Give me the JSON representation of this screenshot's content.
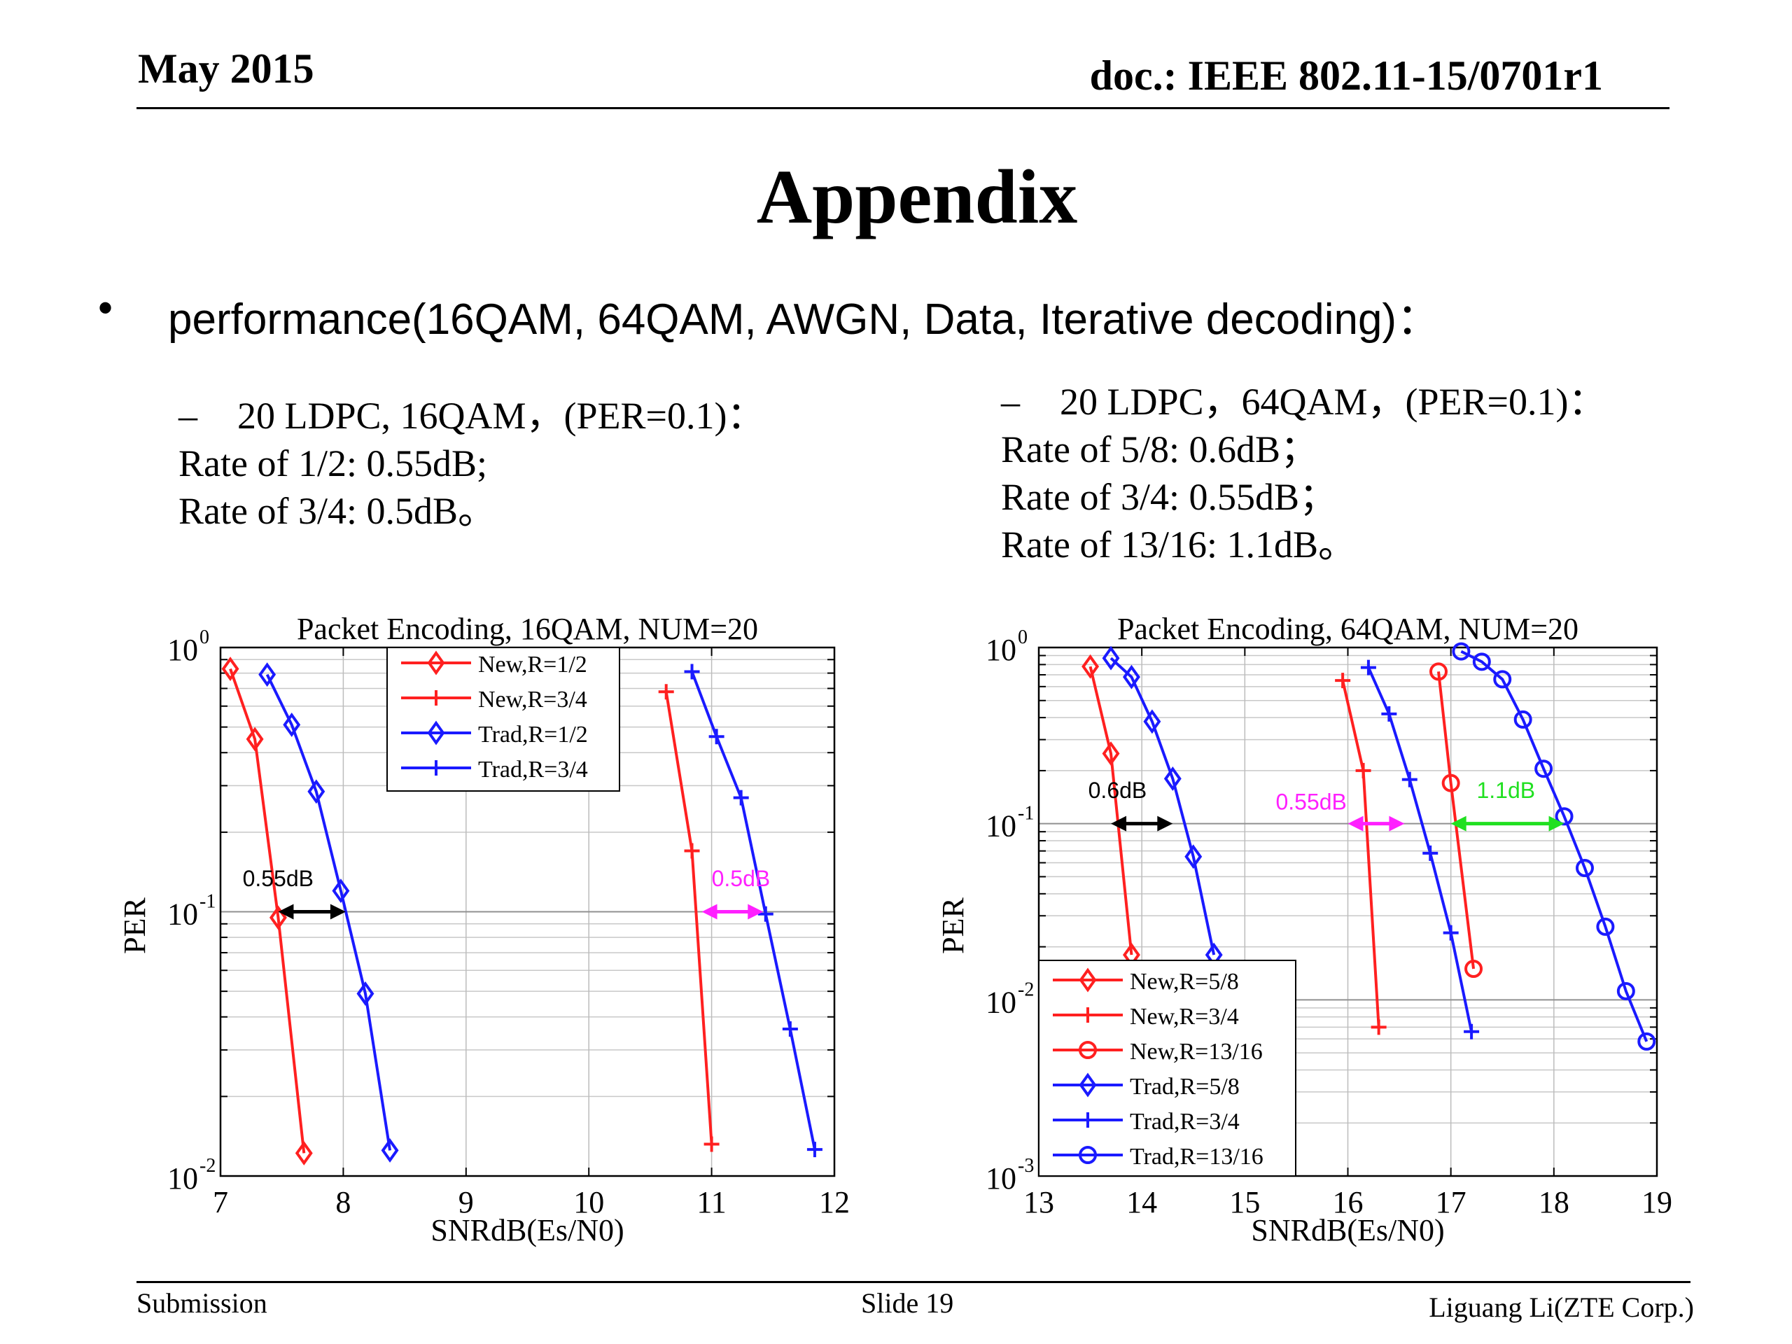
{
  "header": {
    "date": "May 2015",
    "doc_id": "doc.: IEEE 802.11-15/0701r1"
  },
  "title": "Appendix",
  "bullet": "performance(16QAM, 64QAM, AWGN, Data, Iterative decoding)：",
  "left_text": {
    "heading": "20 LDPC, 16QAM，(PER=0.1)：",
    "lines": [
      "Rate of 1/2: 0.55dB;",
      "Rate of 3/4: 0.5dB。"
    ]
  },
  "right_text": {
    "heading": "20 LDPC，64QAM，(PER=0.1)：",
    "lines": [
      "Rate of 5/8: 0.6dB；",
      "Rate of 3/4: 0.55dB；",
      "Rate of 13/16: 1.1dB。"
    ]
  },
  "footer": {
    "left": "Submission",
    "center": "Slide 19",
    "right": "Liguang Li(ZTE Corp.)"
  },
  "chart_data": [
    {
      "type": "line",
      "title": "Packet Encoding, 16QAM, NUM=20",
      "xlabel": "SNRdB(Es/N0)",
      "ylabel": "PER",
      "xlim": [
        7,
        12
      ],
      "ylim": [
        0.01,
        1
      ],
      "yscale": "log",
      "grid": true,
      "legend_position": "top-center",
      "xticks": [
        "7",
        "8",
        "9",
        "10",
        "11",
        "12"
      ],
      "yticks": [
        {
          "base": "10",
          "exp": "0",
          "value": 1
        },
        {
          "base": "10",
          "exp": "-1",
          "value": 0.1
        },
        {
          "base": "10",
          "exp": "-2",
          "value": 0.01
        }
      ],
      "series": [
        {
          "name": "New,R=1/2",
          "color": "#ff2020",
          "marker": "diamond",
          "x": [
            7.08,
            7.28,
            7.47,
            7.68
          ],
          "y": [
            0.83,
            0.45,
            0.095,
            0.0122
          ]
        },
        {
          "name": "New,R=3/4",
          "color": "#ff2020",
          "marker": "plus",
          "x": [
            10.63,
            10.84,
            11.0
          ],
          "y": [
            0.68,
            0.17,
            0.0132
          ]
        },
        {
          "name": "Trad,R=1/2",
          "color": "#1a1aff",
          "marker": "diamond",
          "x": [
            7.38,
            7.58,
            7.78,
            7.98,
            8.18,
            8.38
          ],
          "y": [
            0.79,
            0.51,
            0.285,
            0.12,
            0.049,
            0.0125
          ]
        },
        {
          "name": "Trad,R=3/4",
          "color": "#1a1aff",
          "marker": "plus",
          "x": [
            10.84,
            11.04,
            11.24,
            11.44,
            11.64,
            11.84
          ],
          "y": [
            0.81,
            0.46,
            0.27,
            0.098,
            0.036,
            0.0126
          ]
        }
      ],
      "annotations": [
        {
          "text": "0.55dB",
          "color": "#000000",
          "x1": 7.47,
          "x2": 8.02,
          "y": 0.1,
          "text_x": 7.18,
          "text_y": 0.125
        },
        {
          "text": "0.5dB",
          "color": "#ff20ff",
          "x1": 10.92,
          "x2": 11.42,
          "y": 0.1,
          "text_x": 11.0,
          "text_y": 0.125
        }
      ]
    },
    {
      "type": "line",
      "title": "Packet Encoding, 64QAM, NUM=20",
      "xlabel": "SNRdB(Es/N0)",
      "ylabel": "PER",
      "xlim": [
        13,
        19
      ],
      "ylim": [
        0.001,
        1
      ],
      "yscale": "log",
      "grid": true,
      "legend_position": "bottom-left",
      "xticks": [
        "13",
        "14",
        "15",
        "16",
        "17",
        "18",
        "19"
      ],
      "yticks": [
        {
          "base": "10",
          "exp": "0",
          "value": 1
        },
        {
          "base": "10",
          "exp": "-1",
          "value": 0.1
        },
        {
          "base": "10",
          "exp": "-2",
          "value": 0.01
        },
        {
          "base": "10",
          "exp": "-3",
          "value": 0.001
        }
      ],
      "series": [
        {
          "name": "New,R=5/8",
          "color": "#ff2020",
          "marker": "diamond",
          "x": [
            13.5,
            13.7,
            13.9
          ],
          "y": [
            0.78,
            0.25,
            0.018
          ]
        },
        {
          "name": "New,R=3/4",
          "color": "#ff2020",
          "marker": "plus",
          "x": [
            15.95,
            16.15,
            16.3
          ],
          "y": [
            0.65,
            0.2,
            0.007
          ]
        },
        {
          "name": "New,R=13/16",
          "color": "#ff2020",
          "marker": "circle",
          "x": [
            16.88,
            17.0,
            17.22
          ],
          "y": [
            0.73,
            0.17,
            0.015
          ]
        },
        {
          "name": "Trad,R=5/8",
          "color": "#1a1aff",
          "marker": "diamond",
          "x": [
            13.7,
            13.9,
            14.1,
            14.3,
            14.5,
            14.7
          ],
          "y": [
            0.87,
            0.68,
            0.38,
            0.18,
            0.065,
            0.018
          ]
        },
        {
          "name": "Trad,R=3/4",
          "color": "#1a1aff",
          "marker": "plus",
          "x": [
            16.2,
            16.4,
            16.6,
            16.8,
            17.0,
            17.2
          ],
          "y": [
            0.77,
            0.42,
            0.178,
            0.068,
            0.024,
            0.0066
          ]
        },
        {
          "name": "Trad,R=13/16",
          "color": "#1a1aff",
          "marker": "circle",
          "x": [
            17.1,
            17.3,
            17.5,
            17.7,
            17.9,
            18.1,
            18.3,
            18.5,
            18.7,
            18.9
          ],
          "y": [
            0.95,
            0.83,
            0.66,
            0.39,
            0.205,
            0.11,
            0.056,
            0.026,
            0.0112,
            0.0058
          ]
        }
      ],
      "annotations": [
        {
          "text": "0.6dB",
          "color": "#000000",
          "x1": 13.7,
          "x2": 14.3,
          "y": 0.1,
          "text_x": 13.48,
          "text_y": 0.14
        },
        {
          "text": "0.55dB",
          "color": "#ff20ff",
          "x1": 16.0,
          "x2": 16.55,
          "y": 0.1,
          "text_x": 15.3,
          "text_y": 0.12
        },
        {
          "text": "1.1dB",
          "color": "#20e020",
          "x1": 17.0,
          "x2": 18.1,
          "y": 0.1,
          "text_x": 17.25,
          "text_y": 0.14
        }
      ]
    }
  ]
}
